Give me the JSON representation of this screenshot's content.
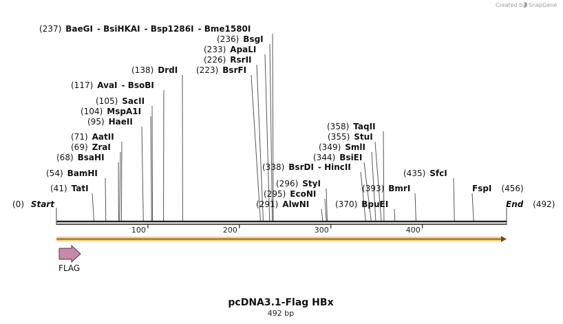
{
  "credit": {
    "prefix": "Created by",
    "brand": "SnapGene"
  },
  "title": "pcDNA3.1-Flag HBx",
  "subtitle": "492 bp",
  "sequence": {
    "length": 492,
    "start_label": "Start",
    "start_pos": "(0)",
    "end_label": "End",
    "end_pos": "(492)",
    "ticks": [
      "100",
      "200",
      "300",
      "400"
    ],
    "colors": {
      "ruler": "#222222",
      "orf": "#f0b849",
      "orf_line": "#7a4a10",
      "feature": "#c58aa6"
    }
  },
  "features": [
    {
      "name": "FLAG"
    }
  ],
  "sites": [
    {
      "pos": "(41)",
      "names": [
        "TatI"
      ]
    },
    {
      "pos": "(54)",
      "names": [
        "BamHI"
      ]
    },
    {
      "pos": "(68)",
      "names": [
        "BsaHI"
      ]
    },
    {
      "pos": "(69)",
      "names": [
        "ZraI"
      ]
    },
    {
      "pos": "(71)",
      "names": [
        "AatII"
      ]
    },
    {
      "pos": "(95)",
      "names": [
        "HaeII"
      ]
    },
    {
      "pos": "(104)",
      "names": [
        "MspA1I"
      ]
    },
    {
      "pos": "(105)",
      "names": [
        "SacII"
      ]
    },
    {
      "pos": "(117)",
      "names": [
        "AvaI",
        "BsoBI"
      ]
    },
    {
      "pos": "(138)",
      "names": [
        "DrdI"
      ]
    },
    {
      "pos": "(237)",
      "names": [
        "BaeGI",
        "BsiHKAI",
        "Bsp1286I",
        "Bme1580I"
      ]
    },
    {
      "pos": "(236)",
      "names": [
        "BsgI"
      ]
    },
    {
      "pos": "(233)",
      "names": [
        "ApaLI"
      ]
    },
    {
      "pos": "(226)",
      "names": [
        "RsrII"
      ]
    },
    {
      "pos": "(223)",
      "names": [
        "BsrFI"
      ]
    },
    {
      "pos": "(291)",
      "names": [
        "AlwNI"
      ]
    },
    {
      "pos": "(295)",
      "names": [
        "EcoNI"
      ]
    },
    {
      "pos": "(296)",
      "names": [
        "StyI"
      ]
    },
    {
      "pos": "(338)",
      "names": [
        "BsrDI",
        "HincII"
      ]
    },
    {
      "pos": "(344)",
      "names": [
        "BsiEI"
      ]
    },
    {
      "pos": "(349)",
      "names": [
        "SmlI"
      ]
    },
    {
      "pos": "(355)",
      "names": [
        "StuI"
      ]
    },
    {
      "pos": "(358)",
      "names": [
        "TaqII"
      ]
    },
    {
      "pos": "(370)",
      "names": [
        "BpuEI"
      ]
    },
    {
      "pos": "(393)",
      "names": [
        "BmrI"
      ]
    },
    {
      "pos": "(435)",
      "names": [
        "SfcI"
      ]
    },
    {
      "pos": "(456)",
      "names": [
        "FspI"
      ]
    }
  ]
}
